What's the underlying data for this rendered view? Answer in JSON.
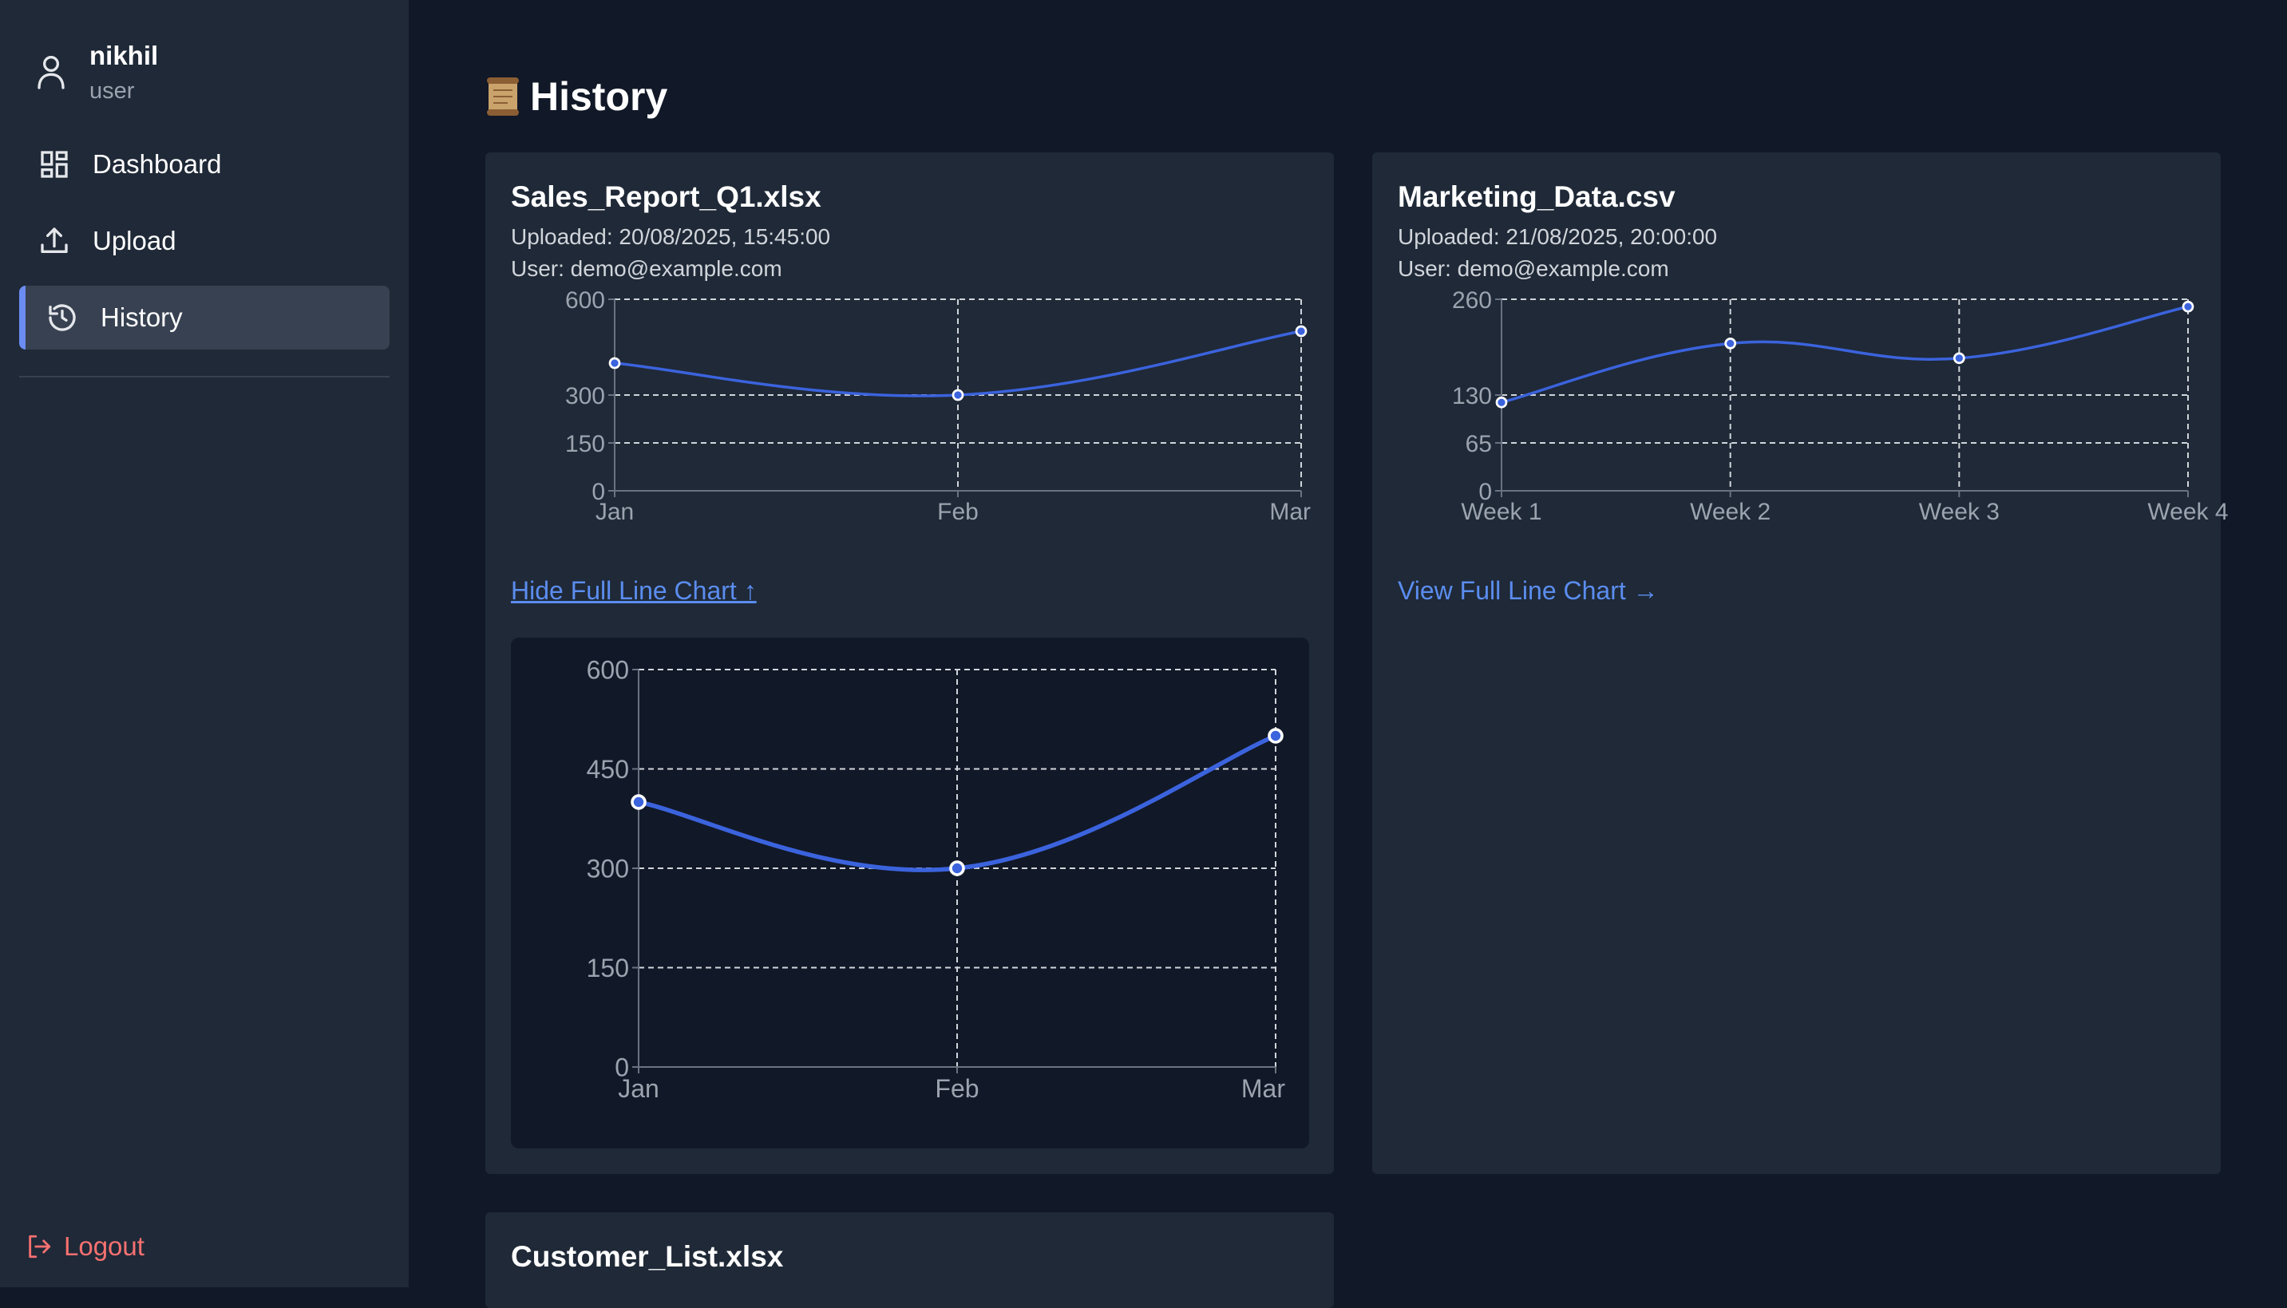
{
  "user": {
    "name": "nikhil",
    "role": "user"
  },
  "nav": {
    "dashboard": "Dashboard",
    "upload": "Upload",
    "history": "History",
    "logout": "Logout"
  },
  "page": {
    "title": "History",
    "title_icon": "scroll-icon"
  },
  "cards": [
    {
      "file_name": "Sales_Report_Q1.xlsx",
      "uploaded": "Uploaded: 20/08/2025, 15:45:00",
      "user": "User: demo@example.com",
      "link_label": "Hide Full Line Chart ↑"
    },
    {
      "file_name": "Marketing_Data.csv",
      "uploaded": "Uploaded: 21/08/2025, 20:00:00",
      "user": "User: demo@example.com",
      "link_label": "View Full Line Chart →"
    },
    {
      "file_name": "Customer_List.xlsx"
    }
  ],
  "colors": {
    "background": "#111827",
    "panel": "#1f2937",
    "active_nav": "#374151",
    "accent": "#6b8cf0",
    "line": "#3b63dd",
    "link": "#5b8def",
    "logout": "#f87171"
  },
  "chart_data": [
    {
      "type": "line",
      "categories": [
        "Jan",
        "Feb",
        "Mar"
      ],
      "values": [
        400,
        300,
        500
      ],
      "yticks": [
        0,
        150,
        300,
        600
      ],
      "ylim": [
        0,
        600
      ],
      "grid": true
    },
    {
      "type": "line",
      "categories": [
        "Week 1",
        "Week 2",
        "Week 3",
        "Week 4"
      ],
      "values": [
        120,
        200,
        180,
        250
      ],
      "yticks": [
        0,
        65,
        130,
        260
      ],
      "ylim": [
        0,
        260
      ],
      "grid": true
    },
    {
      "type": "line",
      "categories": [
        "Jan",
        "Feb",
        "Mar"
      ],
      "values": [
        400,
        300,
        500
      ],
      "yticks": [
        0,
        150,
        300,
        450,
        600
      ],
      "ylim": [
        0,
        600
      ],
      "grid": true
    }
  ]
}
